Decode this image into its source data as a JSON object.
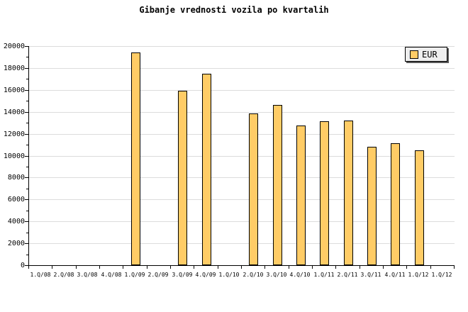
{
  "header": {
    "title": "Gibanje vrednosti vozila po kvartalih"
  },
  "legend": {
    "label": "EUR",
    "position": "top-right"
  },
  "colors": {
    "bar_fill": "#FFCC66",
    "bar_border": "#000000",
    "gridline": "#DCDCDC",
    "axis": "#000000",
    "legend_bg": "#EEEEEE",
    "background": "#FFFFFF"
  },
  "chart_data": {
    "type": "bar",
    "title": "Gibanje vrednosti vozila po kvartalih",
    "series_name": "EUR",
    "categories": [
      "1.Q/08",
      "2.Q/08",
      "3.Q/08",
      "4.Q/08",
      "1.Q/09",
      "2.Q/09",
      "3.Q/09",
      "4.Q/09",
      "1.Q/10",
      "2.Q/10",
      "3.Q/10",
      "4.Q/10",
      "1.Q/11",
      "2.Q/11",
      "3.Q/11",
      "4.Q/11",
      "1.Q/12",
      "1.Q/12"
    ],
    "values": [
      null,
      null,
      null,
      null,
      19400,
      null,
      15900,
      17480,
      null,
      13880,
      14630,
      12730,
      13160,
      13200,
      10790,
      11150,
      10500,
      null
    ],
    "xlabel": "",
    "ylabel": "",
    "ylim": [
      0,
      20000
    ],
    "ytick_step": 2000,
    "ytick_minor_step": 1000,
    "ytick_labels": [
      "0",
      "2000",
      "4000",
      "6000",
      "8000",
      "10000",
      "12000",
      "14000",
      "16000",
      "18000",
      "20000"
    ],
    "grid": "horizontal",
    "legend_position": "top-right"
  }
}
